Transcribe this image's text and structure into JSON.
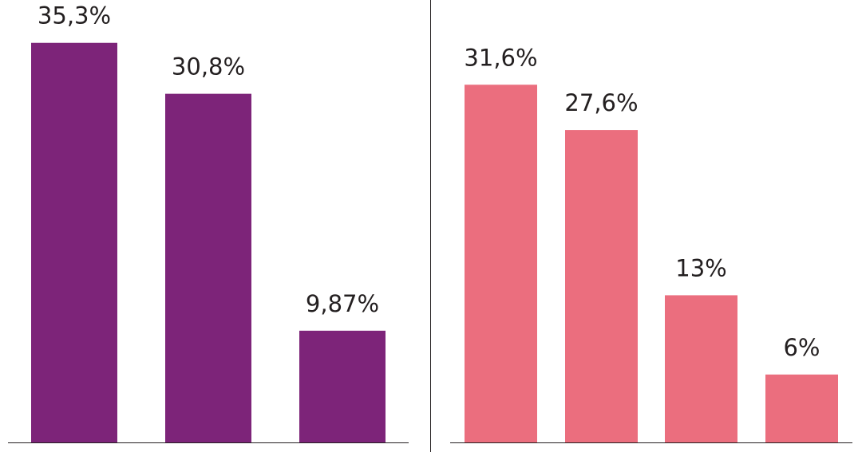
{
  "chart_data": [
    {
      "type": "bar",
      "title": "",
      "xlabel": "",
      "ylabel": "",
      "ylim": [
        0,
        38
      ],
      "grid": false,
      "color": "#7d2479",
      "series": [
        {
          "values": [
            35.3,
            30.8,
            9.87
          ]
        }
      ],
      "data_labels": [
        "35,3%",
        "30,8%",
        "9,87%"
      ]
    },
    {
      "type": "bar",
      "title": "",
      "xlabel": "",
      "ylabel": "",
      "ylim": [
        0,
        38
      ],
      "grid": false,
      "color": "#eb6e7e",
      "series": [
        {
          "values": [
            31.6,
            27.6,
            13,
            6
          ]
        }
      ],
      "data_labels": [
        "31,6%",
        "27,6%",
        "13%",
        "6%"
      ]
    }
  ]
}
